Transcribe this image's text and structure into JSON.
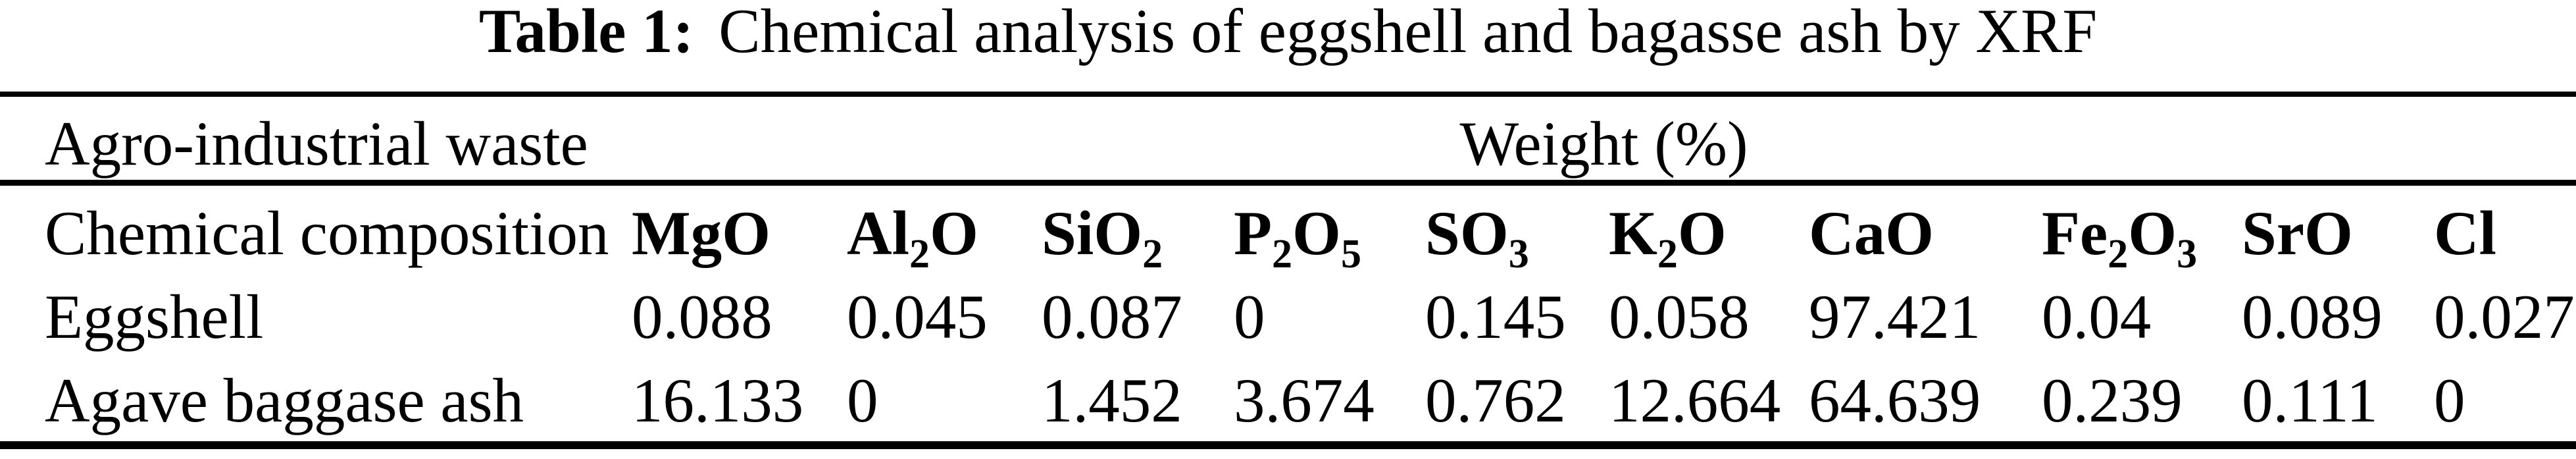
{
  "title": {
    "label": "Table 1:",
    "text": "Chemical analysis of eggshell and bagasse ash by XRF"
  },
  "table": {
    "group_header": {
      "waste": "Agro-industrial waste",
      "weight": "Weight (%)"
    },
    "columns": [
      {
        "name": "Chemical composition",
        "segments": [
          {
            "t": "Chemical composition"
          }
        ]
      },
      {
        "name": "MgO",
        "segments": [
          {
            "t": "MgO"
          }
        ]
      },
      {
        "name": "Al2O",
        "segments": [
          {
            "t": "Al"
          },
          {
            "s": "2"
          },
          {
            "t": "O"
          }
        ]
      },
      {
        "name": "SiO2",
        "segments": [
          {
            "t": "SiO"
          },
          {
            "s": "2"
          }
        ]
      },
      {
        "name": "P2O5",
        "segments": [
          {
            "t": "P"
          },
          {
            "s": "2"
          },
          {
            "t": "O"
          },
          {
            "s": "5"
          }
        ]
      },
      {
        "name": "SO3",
        "segments": [
          {
            "t": "SO"
          },
          {
            "s": "3"
          }
        ]
      },
      {
        "name": "K2O",
        "segments": [
          {
            "t": "K"
          },
          {
            "s": "2"
          },
          {
            "t": "O"
          }
        ]
      },
      {
        "name": "CaO",
        "segments": [
          {
            "t": "CaO"
          }
        ]
      },
      {
        "name": "Fe2O3",
        "segments": [
          {
            "t": "Fe"
          },
          {
            "s": "2"
          },
          {
            "t": "O"
          },
          {
            "s": "3"
          }
        ]
      },
      {
        "name": "SrO",
        "segments": [
          {
            "t": "SrO"
          }
        ]
      },
      {
        "name": "Cl",
        "segments": [
          {
            "t": "Cl"
          }
        ]
      }
    ],
    "rows": [
      {
        "label": "Eggshell",
        "values": [
          "0.088",
          "0.045",
          "0.087",
          "0",
          "0.145",
          "0.058",
          "97.421",
          "0.04",
          "0.089",
          "0.027"
        ]
      },
      {
        "label": "Agave baggase ash",
        "values": [
          "16.133",
          "0",
          "1.452",
          "3.674",
          "0.762",
          "12.664",
          "64.639",
          "0.239",
          "0.111",
          "0"
        ]
      }
    ]
  },
  "chart_data": {
    "type": "table",
    "title": "Table 1: Chemical analysis of eggshell and bagasse ash by XRF",
    "unit": "Weight (%)",
    "categories": [
      "MgO",
      "Al2O",
      "SiO2",
      "P2O5",
      "SO3",
      "K2O",
      "CaO",
      "Fe2O3",
      "SrO",
      "Cl"
    ],
    "series": [
      {
        "name": "Eggshell",
        "values": [
          0.088,
          0.045,
          0.087,
          0,
          0.145,
          0.058,
          97.421,
          0.04,
          0.089,
          0.027
        ]
      },
      {
        "name": "Agave baggase ash",
        "values": [
          16.133,
          0,
          1.452,
          3.674,
          0.762,
          12.664,
          64.639,
          0.239,
          0.111,
          0
        ]
      }
    ]
  }
}
